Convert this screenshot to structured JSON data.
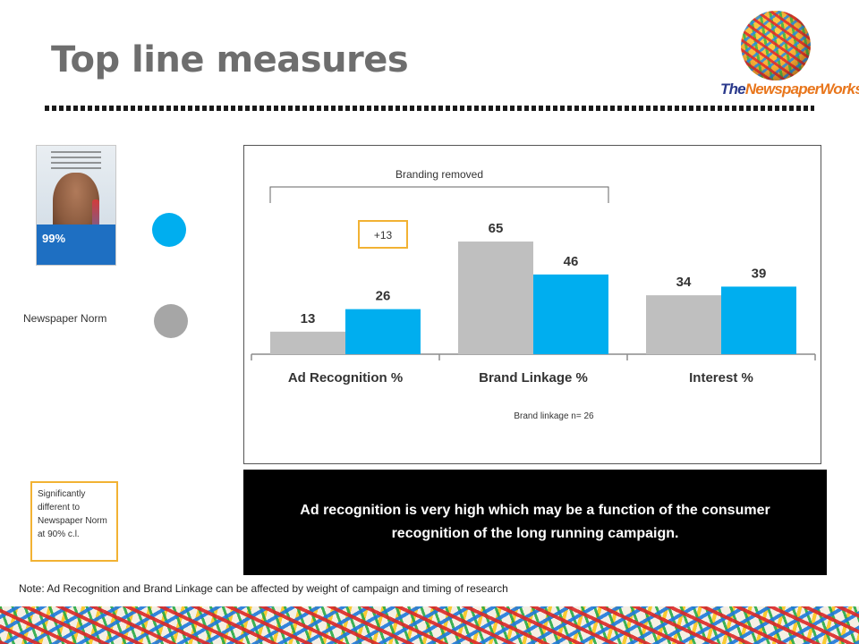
{
  "header": {
    "title": "Top line measures",
    "logo_the": "The",
    "logo_name": "NewspaperWorks"
  },
  "legend": {
    "ad_series_color": "#00aeef",
    "norm_label": "Newspaper Norm",
    "norm_series_color": "#a6a6a6"
  },
  "ad_thumbnail": {
    "icon": "advertisement-thumbnail-icon",
    "headline": "Rub the Dentist in Back!",
    "offer": "99%"
  },
  "chart_data": {
    "type": "bar",
    "categories": [
      "Ad Recognition %",
      "Brand Linkage %",
      "Interest %"
    ],
    "series": [
      {
        "name": "Newspaper Norm",
        "values": [
          13,
          65,
          34
        ],
        "color": "#bfbfbf"
      },
      {
        "values": [
          26,
          46,
          39
        ],
        "color": "#00aeef"
      }
    ],
    "data_labels": true,
    "bracket_label": "Branding removed",
    "bracket_categories": [
      "Ad Recognition %",
      "Brand Linkage %"
    ],
    "highlight_label": "+13",
    "highlight_color": "#f2b233",
    "footnote": "Brand linkage  n= 26",
    "ylim": [
      0,
      80
    ],
    "grid": false
  },
  "significance_note": "Significantly different to Newspaper Norm at 90% c.l.",
  "summary": "Ad recognition is very high which may be a function of the consumer recognition of the long running campaign.",
  "note": "Note: Ad Recognition and Brand Linkage can be affected by weight of campaign and timing of research"
}
